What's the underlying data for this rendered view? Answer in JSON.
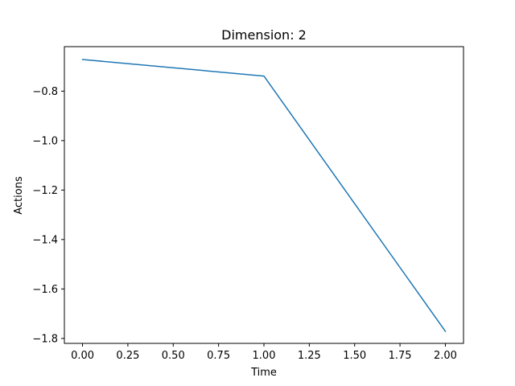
{
  "chart_data": {
    "type": "line",
    "title": "Dimension: 2",
    "xlabel": "Time",
    "ylabel": "Actions",
    "xlim": [
      -0.1,
      2.1
    ],
    "ylim": [
      -1.82,
      -0.62
    ],
    "xticks": [
      0.0,
      0.25,
      0.5,
      0.75,
      1.0,
      1.25,
      1.5,
      1.75,
      2.0
    ],
    "xtick_labels": [
      "0.00",
      "0.25",
      "0.50",
      "0.75",
      "1.00",
      "1.25",
      "1.50",
      "1.75",
      "2.00"
    ],
    "yticks": [
      -0.8,
      -1.0,
      -1.2,
      -1.4,
      -1.6,
      -1.8
    ],
    "ytick_labels": [
      "−0.8",
      "−1.0",
      "−1.2",
      "−1.4",
      "−1.6",
      "−1.8"
    ],
    "grid": false,
    "series": [
      {
        "color": "#1f77b4",
        "x": [
          0,
          1,
          2
        ],
        "y": [
          -0.672,
          -0.739,
          -1.771
        ]
      }
    ]
  }
}
